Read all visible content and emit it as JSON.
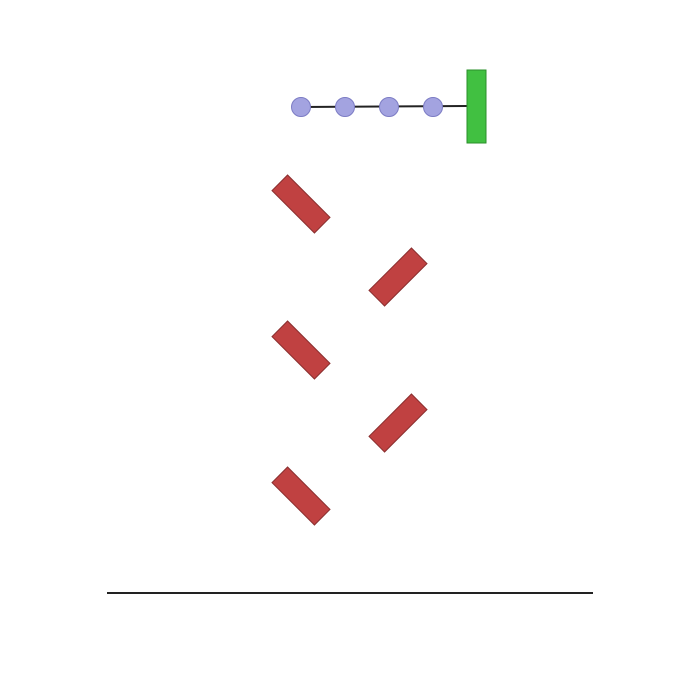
{
  "scene": {
    "background_color": "#ffffff",
    "chain": {
      "link_count": 4,
      "ball_fill": "#a3a3e0",
      "ball_stroke": "#7c7cc4",
      "rope_color": "#222222"
    },
    "anchor_post": {
      "fill": "#41c041",
      "stroke": "#2a8f2a"
    },
    "obstacles": {
      "count": 5,
      "fill": "#c04141",
      "stroke": "#8a2f2f",
      "tilt_pattern": [
        "down-right",
        "up-right",
        "down-right",
        "up-right",
        "down-right"
      ]
    },
    "ground": {
      "color": "#222222"
    }
  }
}
